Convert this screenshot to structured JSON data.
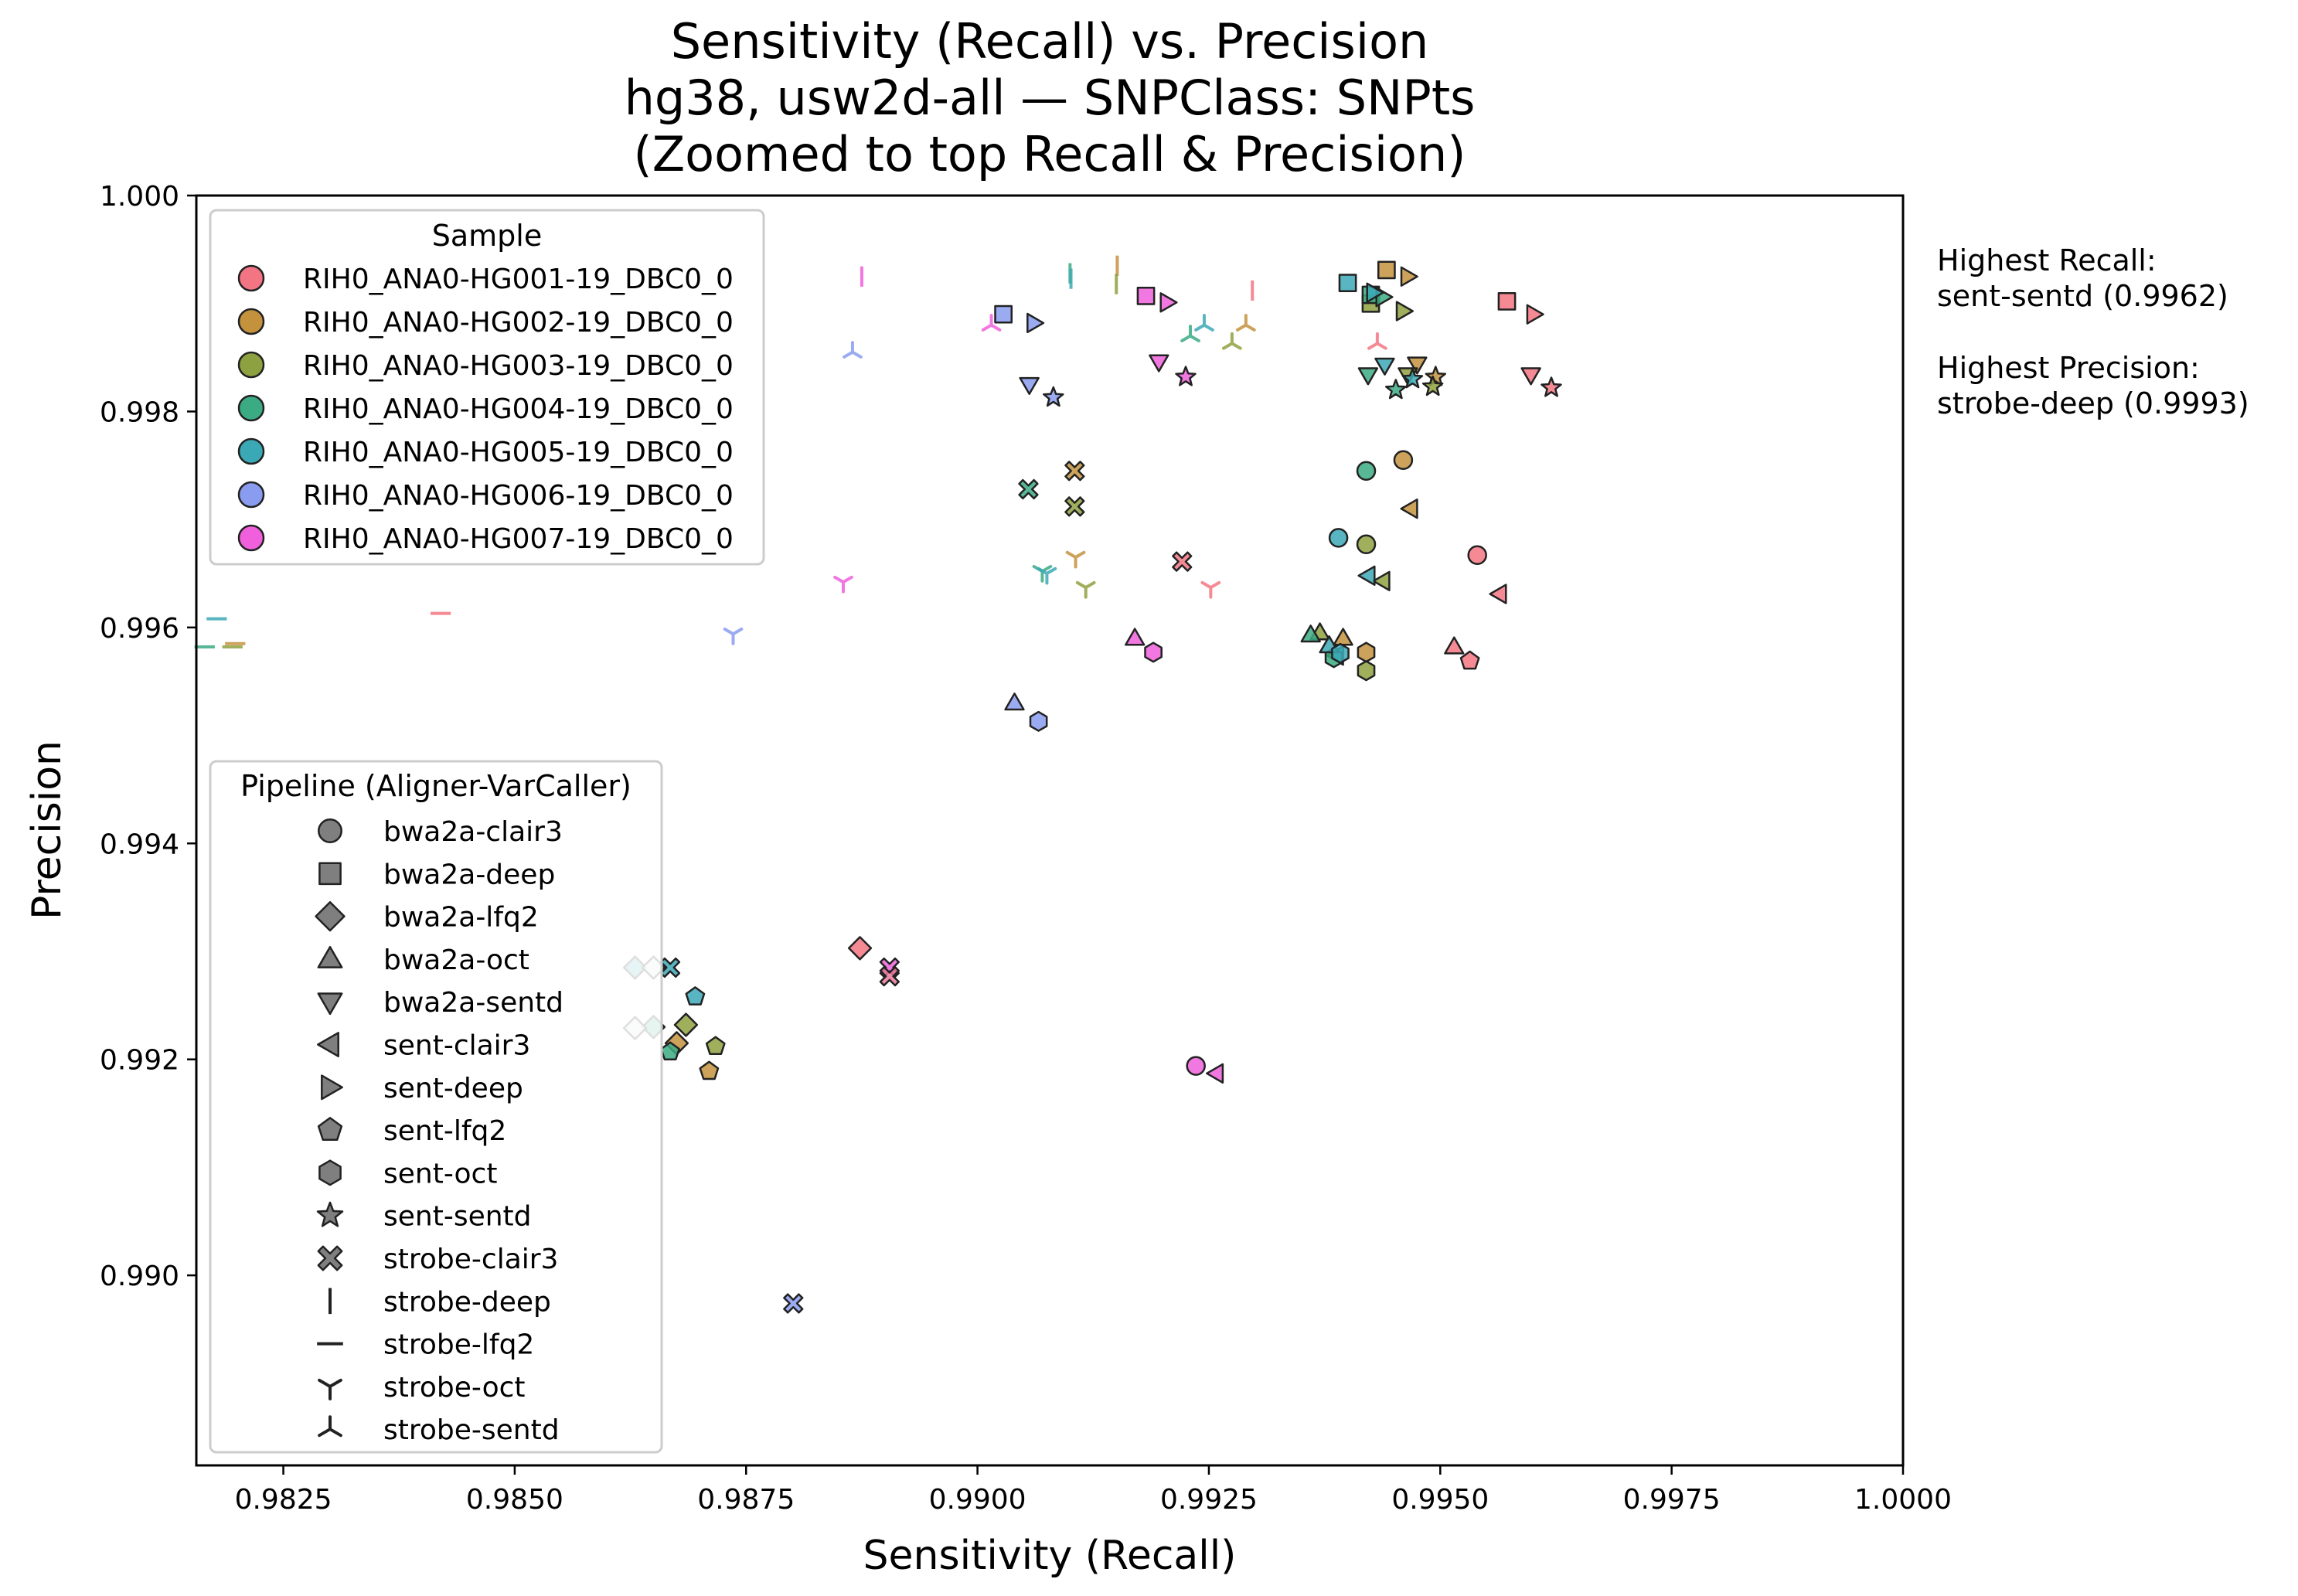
{
  "chart_data": {
    "type": "scatter",
    "title": [
      "Sensitivity (Recall) vs. Precision",
      "hg38, usw2d-all — SNPClass: SNPts",
      "(Zoomed to top Recall & Precision)"
    ],
    "xlabel": "Sensitivity (Recall)",
    "ylabel": "Precision",
    "xlim": [
      0.98156,
      1.0
    ],
    "ylim": [
      0.98824,
      1.0
    ],
    "xticks": [
      0.9825,
      0.985,
      0.9875,
      0.99,
      0.9925,
      0.995,
      0.9975,
      1.0
    ],
    "xtick_labels": [
      "0.9825",
      "0.9850",
      "0.9875",
      "0.9900",
      "0.9925",
      "0.9950",
      "0.9975",
      "1.0000"
    ],
    "yticks": [
      0.99,
      0.992,
      0.994,
      0.996,
      0.998,
      1.0
    ],
    "ytick_labels": [
      "0.990",
      "0.992",
      "0.994",
      "0.996",
      "0.998",
      "1.000"
    ],
    "grid": false,
    "annotation": [
      "Highest Recall:",
      "sent-sentd (0.9962)",
      "",
      "Highest Precision:",
      "strobe-deep (0.9993)"
    ],
    "samples": [
      {
        "name": "RIH0_ANA0-HG001-19_DBC0_0",
        "color": "#f37583"
      },
      {
        "name": "RIH0_ANA0-HG002-19_DBC0_0",
        "color": "#c4923d"
      },
      {
        "name": "RIH0_ANA0-HG003-19_DBC0_0",
        "color": "#8ea140"
      },
      {
        "name": "RIH0_ANA0-HG004-19_DBC0_0",
        "color": "#3bab84"
      },
      {
        "name": "RIH0_ANA0-HG005-19_DBC0_0",
        "color": "#3ba8b6"
      },
      {
        "name": "RIH0_ANA0-HG006-19_DBC0_0",
        "color": "#8a9cf0"
      },
      {
        "name": "RIH0_ANA0-HG007-19_DBC0_0",
        "color": "#f060dc"
      }
    ],
    "legend_sample": {
      "title": "Sample",
      "placement": "upper-left"
    },
    "legend_pipeline": {
      "title": "Pipeline (Aligner-VarCaller)",
      "placement": "lower-left",
      "entries": [
        {
          "name": "bwa2a-clair3",
          "marker": "circle"
        },
        {
          "name": "bwa2a-deep",
          "marker": "square"
        },
        {
          "name": "bwa2a-lfq2",
          "marker": "diamond"
        },
        {
          "name": "bwa2a-oct",
          "marker": "triangle-up"
        },
        {
          "name": "bwa2a-sentd",
          "marker": "triangle-down"
        },
        {
          "name": "sent-clair3",
          "marker": "triangle-left"
        },
        {
          "name": "sent-deep",
          "marker": "triangle-right"
        },
        {
          "name": "sent-lfq2",
          "marker": "pentagon"
        },
        {
          "name": "sent-oct",
          "marker": "hexagon"
        },
        {
          "name": "sent-sentd",
          "marker": "star"
        },
        {
          "name": "strobe-clair3",
          "marker": "x-filled"
        },
        {
          "name": "strobe-deep",
          "marker": "vline"
        },
        {
          "name": "strobe-lfq2",
          "marker": "hline"
        },
        {
          "name": "strobe-oct",
          "marker": "tri-down"
        },
        {
          "name": "strobe-sentd",
          "marker": "tri-up"
        }
      ]
    },
    "points": [
      {
        "sample": 0,
        "pipeline": "bwa2a-clair3",
        "x": 0.9954,
        "y": 0.99667
      },
      {
        "sample": 0,
        "pipeline": "bwa2a-deep",
        "x": 0.99572,
        "y": 0.99902
      },
      {
        "sample": 0,
        "pipeline": "bwa2a-lfq2",
        "x": 0.98873,
        "y": 0.99303
      },
      {
        "sample": 0,
        "pipeline": "bwa2a-oct",
        "x": 0.99515,
        "y": 0.99582
      },
      {
        "sample": 0,
        "pipeline": "bwa2a-sentd",
        "x": 0.99598,
        "y": 0.99834
      },
      {
        "sample": 0,
        "pipeline": "sent-clair3",
        "x": 0.99564,
        "y": 0.99631
      },
      {
        "sample": 0,
        "pipeline": "sent-deep",
        "x": 0.99601,
        "y": 0.9989
      },
      {
        "sample": 0,
        "pipeline": "sent-lfq2",
        "x": 0.99532,
        "y": 0.99569
      },
      {
        "sample": 0,
        "pipeline": "sent-sentd",
        "x": 0.9962,
        "y": 0.99822
      },
      {
        "sample": 0,
        "pipeline": "strobe-clair3",
        "x": 0.99221,
        "y": 0.99661
      },
      {
        "sample": 0,
        "pipeline": "strobe-deep",
        "x": 0.99297,
        "y": 0.99912
      },
      {
        "sample": 0,
        "pipeline": "strobe-lfq2",
        "x": 0.9842,
        "y": 0.99613
      },
      {
        "sample": 0,
        "pipeline": "strobe-oct",
        "x": 0.99252,
        "y": 0.99637
      },
      {
        "sample": 0,
        "pipeline": "strobe-sentd",
        "x": 0.99432,
        "y": 0.99863
      },
      {
        "sample": 1,
        "pipeline": "bwa2a-clair3",
        "x": 0.9946,
        "y": 0.99755
      },
      {
        "sample": 1,
        "pipeline": "bwa2a-deep",
        "x": 0.99442,
        "y": 0.99931
      },
      {
        "sample": 1,
        "pipeline": "bwa2a-lfq2",
        "x": 0.98675,
        "y": 0.99215
      },
      {
        "sample": 1,
        "pipeline": "bwa2a-oct",
        "x": 0.99395,
        "y": 0.9959
      },
      {
        "sample": 1,
        "pipeline": "bwa2a-sentd",
        "x": 0.99475,
        "y": 0.99844
      },
      {
        "sample": 1,
        "pipeline": "sent-clair3",
        "x": 0.99468,
        "y": 0.9971
      },
      {
        "sample": 1,
        "pipeline": "sent-deep",
        "x": 0.99465,
        "y": 0.99925
      },
      {
        "sample": 1,
        "pipeline": "sent-lfq2",
        "x": 0.9871,
        "y": 0.99189
      },
      {
        "sample": 1,
        "pipeline": "sent-oct",
        "x": 0.9942,
        "y": 0.99577
      },
      {
        "sample": 1,
        "pipeline": "sent-sentd",
        "x": 0.99495,
        "y": 0.99832
      },
      {
        "sample": 1,
        "pipeline": "strobe-clair3",
        "x": 0.99105,
        "y": 0.99745
      },
      {
        "sample": 1,
        "pipeline": "strobe-deep",
        "x": 0.99151,
        "y": 0.99935
      },
      {
        "sample": 1,
        "pipeline": "strobe-lfq2",
        "x": 0.98198,
        "y": 0.99585
      },
      {
        "sample": 1,
        "pipeline": "strobe-oct",
        "x": 0.99106,
        "y": 0.99665
      },
      {
        "sample": 1,
        "pipeline": "strobe-sentd",
        "x": 0.9929,
        "y": 0.9988
      },
      {
        "sample": 2,
        "pipeline": "bwa2a-clair3",
        "x": 0.9942,
        "y": 0.99677
      },
      {
        "sample": 2,
        "pipeline": "bwa2a-deep",
        "x": 0.99425,
        "y": 0.999
      },
      {
        "sample": 2,
        "pipeline": "bwa2a-lfq2",
        "x": 0.98685,
        "y": 0.99232
      },
      {
        "sample": 2,
        "pipeline": "bwa2a-oct",
        "x": 0.9937,
        "y": 0.99595
      },
      {
        "sample": 2,
        "pipeline": "bwa2a-sentd",
        "x": 0.99465,
        "y": 0.99834
      },
      {
        "sample": 2,
        "pipeline": "sent-clair3",
        "x": 0.99438,
        "y": 0.99643
      },
      {
        "sample": 2,
        "pipeline": "sent-deep",
        "x": 0.9946,
        "y": 0.99893
      },
      {
        "sample": 2,
        "pipeline": "sent-lfq2",
        "x": 0.98717,
        "y": 0.99212
      },
      {
        "sample": 2,
        "pipeline": "sent-oct",
        "x": 0.9942,
        "y": 0.9956
      },
      {
        "sample": 2,
        "pipeline": "sent-sentd",
        "x": 0.99492,
        "y": 0.99823
      },
      {
        "sample": 2,
        "pipeline": "strobe-clair3",
        "x": 0.99105,
        "y": 0.99712
      },
      {
        "sample": 2,
        "pipeline": "strobe-deep",
        "x": 0.9915,
        "y": 0.99918
      },
      {
        "sample": 2,
        "pipeline": "strobe-lfq2",
        "x": 0.98195,
        "y": 0.99582
      },
      {
        "sample": 2,
        "pipeline": "strobe-oct",
        "x": 0.99117,
        "y": 0.99637
      },
      {
        "sample": 2,
        "pipeline": "strobe-sentd",
        "x": 0.99275,
        "y": 0.99863
      },
      {
        "sample": 3,
        "pipeline": "bwa2a-clair3",
        "x": 0.9942,
        "y": 0.99745
      },
      {
        "sample": 3,
        "pipeline": "bwa2a-deep",
        "x": 0.99425,
        "y": 0.99908
      },
      {
        "sample": 3,
        "pipeline": "bwa2a-lfq2",
        "x": 0.9865,
        "y": 0.9923
      },
      {
        "sample": 3,
        "pipeline": "bwa2a-oct",
        "x": 0.9936,
        "y": 0.99593
      },
      {
        "sample": 3,
        "pipeline": "bwa2a-sentd",
        "x": 0.99422,
        "y": 0.99834
      },
      {
        "sample": 3,
        "pipeline": "sent-clair3",
        "x": 0.99388,
        "y": 0.99574
      },
      {
        "sample": 3,
        "pipeline": "sent-deep",
        "x": 0.99438,
        "y": 0.99906
      },
      {
        "sample": 3,
        "pipeline": "sent-lfq2",
        "x": 0.98668,
        "y": 0.99207
      },
      {
        "sample": 3,
        "pipeline": "sent-oct",
        "x": 0.99385,
        "y": 0.99572
      },
      {
        "sample": 3,
        "pipeline": "sent-sentd",
        "x": 0.99452,
        "y": 0.9982
      },
      {
        "sample": 3,
        "pipeline": "strobe-clair3",
        "x": 0.99055,
        "y": 0.99728
      },
      {
        "sample": 3,
        "pipeline": "strobe-deep",
        "x": 0.991,
        "y": 0.99928
      },
      {
        "sample": 3,
        "pipeline": "strobe-lfq2",
        "x": 0.98165,
        "y": 0.99582
      },
      {
        "sample": 3,
        "pipeline": "strobe-oct",
        "x": 0.9907,
        "y": 0.99652
      },
      {
        "sample": 3,
        "pipeline": "strobe-sentd",
        "x": 0.9923,
        "y": 0.9987
      },
      {
        "sample": 4,
        "pipeline": "bwa2a-clair3",
        "x": 0.9939,
        "y": 0.99683
      },
      {
        "sample": 4,
        "pipeline": "bwa2a-deep",
        "x": 0.994,
        "y": 0.99919
      },
      {
        "sample": 4,
        "pipeline": "bwa2a-lfq2",
        "x": 0.9863,
        "y": 0.99285
      },
      {
        "sample": 4,
        "pipeline": "bwa2a-oct",
        "x": 0.9938,
        "y": 0.99583
      },
      {
        "sample": 4,
        "pipeline": "bwa2a-sentd",
        "x": 0.9944,
        "y": 0.99843
      },
      {
        "sample": 4,
        "pipeline": "sent-clair3",
        "x": 0.99422,
        "y": 0.99648
      },
      {
        "sample": 4,
        "pipeline": "sent-deep",
        "x": 0.99428,
        "y": 0.9991
      },
      {
        "sample": 4,
        "pipeline": "sent-lfq2",
        "x": 0.98695,
        "y": 0.99258
      },
      {
        "sample": 4,
        "pipeline": "sent-oct",
        "x": 0.99392,
        "y": 0.99576
      },
      {
        "sample": 4,
        "pipeline": "sent-sentd",
        "x": 0.9947,
        "y": 0.9983
      },
      {
        "sample": 4,
        "pipeline": "strobe-clair3",
        "x": 0.98668,
        "y": 0.99285
      },
      {
        "sample": 4,
        "pipeline": "strobe-deep",
        "x": 0.99101,
        "y": 0.99923
      },
      {
        "sample": 4,
        "pipeline": "strobe-lfq2",
        "x": 0.98178,
        "y": 0.99608
      },
      {
        "sample": 4,
        "pipeline": "strobe-oct",
        "x": 0.99075,
        "y": 0.9965
      },
      {
        "sample": 4,
        "pipeline": "strobe-sentd",
        "x": 0.99245,
        "y": 0.9988
      },
      {
        "sample": 5,
        "pipeline": "bwa2a-deep",
        "x": 0.99028,
        "y": 0.9989
      },
      {
        "sample": 5,
        "pipeline": "bwa2a-oct",
        "x": 0.9904,
        "y": 0.9953
      },
      {
        "sample": 5,
        "pipeline": "bwa2a-sentd",
        "x": 0.99056,
        "y": 0.99825
      },
      {
        "sample": 5,
        "pipeline": "sent-deep",
        "x": 0.99061,
        "y": 0.99882
      },
      {
        "sample": 5,
        "pipeline": "sent-oct",
        "x": 0.99066,
        "y": 0.99513
      },
      {
        "sample": 5,
        "pipeline": "sent-sentd",
        "x": 0.99082,
        "y": 0.99813
      },
      {
        "sample": 5,
        "pipeline": "strobe-clair3",
        "x": 0.98801,
        "y": 0.98974
      },
      {
        "sample": 5,
        "pipeline": "strobe-oct",
        "x": 0.98736,
        "y": 0.99594
      },
      {
        "sample": 5,
        "pipeline": "strobe-sentd",
        "x": 0.98865,
        "y": 0.99855
      },
      {
        "sample": 6,
        "pipeline": "bwa2a-clair3",
        "x": 0.99236,
        "y": 0.99194
      },
      {
        "sample": 6,
        "pipeline": "bwa2a-deep",
        "x": 0.99182,
        "y": 0.99907
      },
      {
        "sample": 6,
        "pipeline": "bwa2a-oct",
        "x": 0.9917,
        "y": 0.9959
      },
      {
        "sample": 6,
        "pipeline": "bwa2a-sentd",
        "x": 0.99196,
        "y": 0.99846
      },
      {
        "sample": 6,
        "pipeline": "sent-clair3",
        "x": 0.99258,
        "y": 0.99187
      },
      {
        "sample": 6,
        "pipeline": "sent-deep",
        "x": 0.99205,
        "y": 0.99901
      },
      {
        "sample": 6,
        "pipeline": "sent-oct",
        "x": 0.9919,
        "y": 0.99577
      },
      {
        "sample": 6,
        "pipeline": "sent-sentd",
        "x": 0.99225,
        "y": 0.99832
      },
      {
        "sample": 6,
        "pipeline": "strobe-clair3",
        "x": 0.98905,
        "y": 0.99285
      },
      {
        "sample": 6,
        "pipeline": "strobe-deep",
        "x": 0.98875,
        "y": 0.99925
      },
      {
        "sample": 6,
        "pipeline": "strobe-oct",
        "x": 0.98855,
        "y": 0.99642
      },
      {
        "sample": 6,
        "pipeline": "strobe-sentd",
        "x": 0.99015,
        "y": 0.9988
      }
    ],
    "extra_points": [
      {
        "pipeline": "strobe-clair3",
        "x": 0.98905,
        "y": 0.99277,
        "fill": "#e8789a"
      },
      {
        "pipeline": "bwa2a-lfq2",
        "x": 0.9863,
        "y": 0.99229,
        "fill": "#d5e8e0"
      },
      {
        "pipeline": "bwa2a-lfq2",
        "x": 0.9865,
        "y": 0.99285,
        "fill": "#d5e8e0"
      }
    ]
  }
}
